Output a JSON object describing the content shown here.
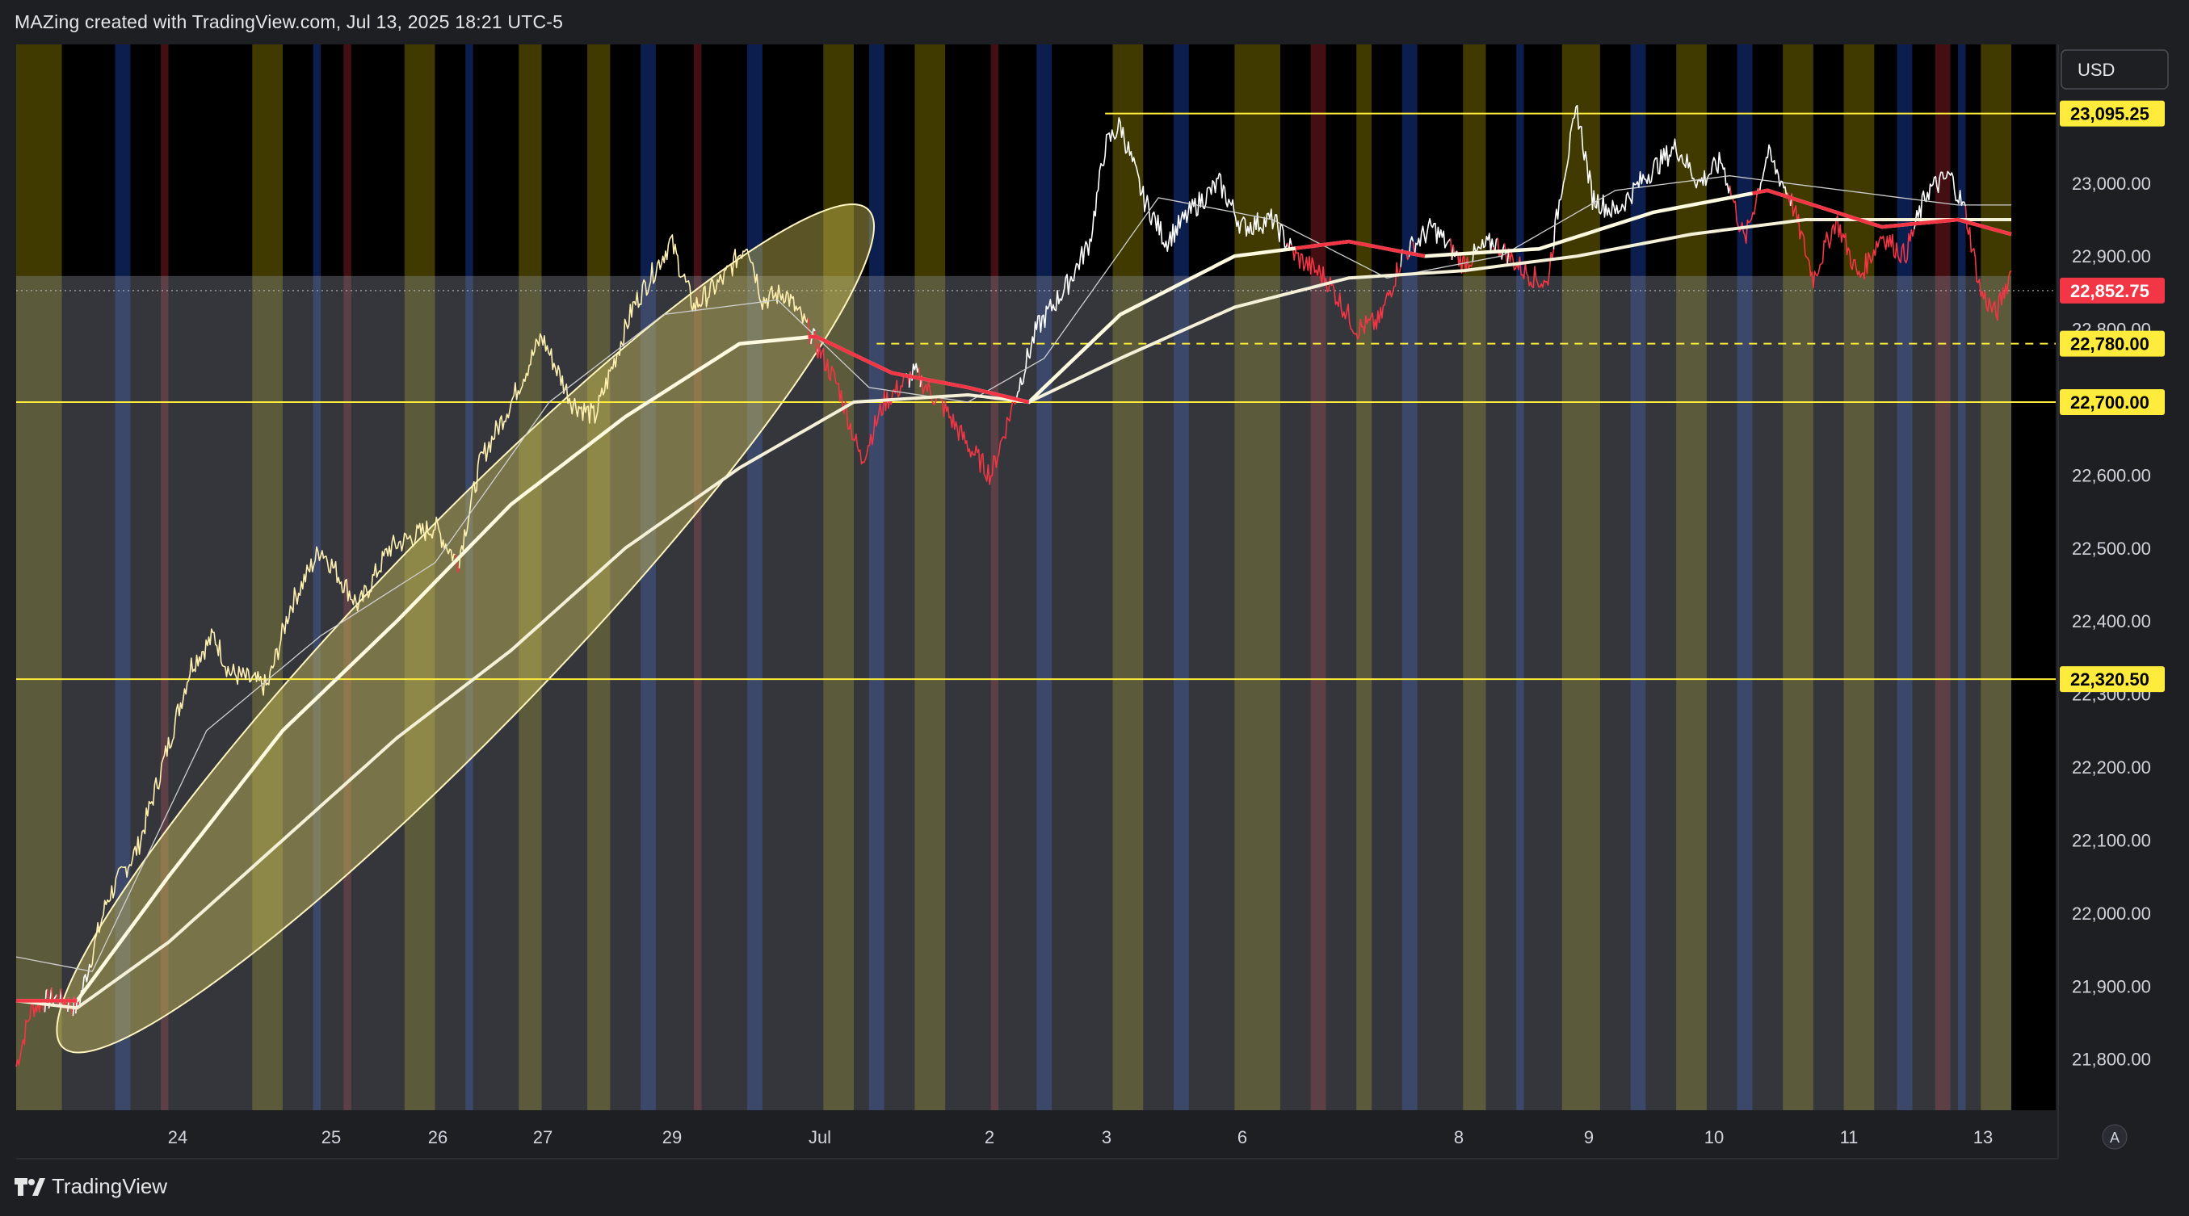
{
  "header": {
    "title": "MAZing created with TradingView.com, Jul 13, 2025 18:21 UTC-5"
  },
  "footer": {
    "brand": "TradingView",
    "brand_icon": "tradingview-logo-icon"
  },
  "currency_button": {
    "label": "USD"
  },
  "auto_scale_button": {
    "label": "A"
  },
  "colors": {
    "background": "#1e1f23",
    "bullish_price": "#ffffff",
    "bearish_price": "#f23645",
    "ellipse_price": "#fff0b0",
    "level_line": "#ffeb3b",
    "band_yellow": "#c8b400",
    "band_blue": "#2962ff",
    "band_red": "#f23645",
    "current_price_badge": "#f23645"
  },
  "chart_data": {
    "type": "line",
    "symbol_context": "price chart with moving averages and horizontal levels",
    "x_ticks": [
      "24",
      "25",
      "26",
      "27",
      "29",
      "Jul",
      "2",
      "3",
      "6",
      "8",
      "9",
      "10",
      "11",
      "13"
    ],
    "y_ticks": [
      "21,800.00",
      "21,900.00",
      "22,000.00",
      "22,100.00",
      "22,200.00",
      "22,300.00",
      "22,400.00",
      "22,500.00",
      "22,600.00",
      "22,700.00",
      "22,800.00",
      "22,900.00",
      "23,000.00"
    ],
    "ylim": [
      21730,
      23190
    ],
    "price_series": [
      {
        "t": 0,
        "v": 21790
      },
      {
        "t": 2,
        "v": 21870
      },
      {
        "t": 5,
        "v": 21885
      },
      {
        "t": 8,
        "v": 21870
      },
      {
        "t": 12,
        "v": 22020
      },
      {
        "t": 16,
        "v": 22090
      },
      {
        "t": 20,
        "v": 22230
      },
      {
        "t": 23,
        "v": 22340
      },
      {
        "t": 26,
        "v": 22380
      },
      {
        "t": 28,
        "v": 22330
      },
      {
        "t": 33,
        "v": 22310
      },
      {
        "t": 36,
        "v": 22420
      },
      {
        "t": 40,
        "v": 22500
      },
      {
        "t": 45,
        "v": 22420
      },
      {
        "t": 49,
        "v": 22500
      },
      {
        "t": 55,
        "v": 22530
      },
      {
        "t": 58,
        "v": 22480
      },
      {
        "t": 61,
        "v": 22620
      },
      {
        "t": 65,
        "v": 22700
      },
      {
        "t": 69,
        "v": 22790
      },
      {
        "t": 73,
        "v": 22700
      },
      {
        "t": 76,
        "v": 22680
      },
      {
        "t": 78,
        "v": 22740
      },
      {
        "t": 81,
        "v": 22830
      },
      {
        "t": 86,
        "v": 22920
      },
      {
        "t": 89,
        "v": 22830
      },
      {
        "t": 93,
        "v": 22870
      },
      {
        "t": 96,
        "v": 22920
      },
      {
        "t": 98,
        "v": 22840
      },
      {
        "t": 101,
        "v": 22850
      },
      {
        "t": 104,
        "v": 22800
      },
      {
        "t": 108,
        "v": 22720
      },
      {
        "t": 111,
        "v": 22620
      },
      {
        "t": 114,
        "v": 22700
      },
      {
        "t": 118,
        "v": 22740
      },
      {
        "t": 122,
        "v": 22690
      },
      {
        "t": 125,
        "v": 22640
      },
      {
        "t": 128,
        "v": 22600
      },
      {
        "t": 131,
        "v": 22700
      },
      {
        "t": 134,
        "v": 22800
      },
      {
        "t": 138,
        "v": 22860
      },
      {
        "t": 141,
        "v": 22920
      },
      {
        "t": 143,
        "v": 23050
      },
      {
        "t": 145,
        "v": 23080
      },
      {
        "t": 148,
        "v": 22980
      },
      {
        "t": 151,
        "v": 22920
      },
      {
        "t": 155,
        "v": 22970
      },
      {
        "t": 158,
        "v": 23000
      },
      {
        "t": 161,
        "v": 22940
      },
      {
        "t": 165,
        "v": 22950
      },
      {
        "t": 168,
        "v": 22900
      },
      {
        "t": 172,
        "v": 22870
      },
      {
        "t": 176,
        "v": 22800
      },
      {
        "t": 179,
        "v": 22810
      },
      {
        "t": 182,
        "v": 22900
      },
      {
        "t": 186,
        "v": 22940
      },
      {
        "t": 190,
        "v": 22890
      },
      {
        "t": 194,
        "v": 22920
      },
      {
        "t": 198,
        "v": 22880
      },
      {
        "t": 201,
        "v": 22860
      },
      {
        "t": 203,
        "v": 23000
      },
      {
        "t": 205,
        "v": 23100
      },
      {
        "t": 207,
        "v": 22980
      },
      {
        "t": 210,
        "v": 22960
      },
      {
        "t": 214,
        "v": 23010
      },
      {
        "t": 218,
        "v": 23050
      },
      {
        "t": 221,
        "v": 23000
      },
      {
        "t": 224,
        "v": 23030
      },
      {
        "t": 227,
        "v": 22920
      },
      {
        "t": 230,
        "v": 23040
      },
      {
        "t": 233,
        "v": 22980
      },
      {
        "t": 236,
        "v": 22870
      },
      {
        "t": 239,
        "v": 22950
      },
      {
        "t": 242,
        "v": 22870
      },
      {
        "t": 245,
        "v": 22930
      },
      {
        "t": 248,
        "v": 22900
      },
      {
        "t": 251,
        "v": 22990
      },
      {
        "t": 254,
        "v": 23010
      },
      {
        "t": 256,
        "v": 22960
      },
      {
        "t": 258,
        "v": 22850
      },
      {
        "t": 260,
        "v": 22820
      },
      {
        "t": 262,
        "v": 22880
      }
    ],
    "ma_fast": [
      {
        "t": 0,
        "v": 21880
      },
      {
        "t": 8,
        "v": 21880
      },
      {
        "t": 20,
        "v": 22050
      },
      {
        "t": 35,
        "v": 22250
      },
      {
        "t": 50,
        "v": 22400
      },
      {
        "t": 65,
        "v": 22560
      },
      {
        "t": 80,
        "v": 22680
      },
      {
        "t": 95,
        "v": 22780
      },
      {
        "t": 105,
        "v": 22790
      },
      {
        "t": 115,
        "v": 22740
      },
      {
        "t": 125,
        "v": 22720
      },
      {
        "t": 133,
        "v": 22700
      },
      {
        "t": 145,
        "v": 22820
      },
      {
        "t": 160,
        "v": 22900
      },
      {
        "t": 175,
        "v": 22920
      },
      {
        "t": 185,
        "v": 22900
      },
      {
        "t": 200,
        "v": 22910
      },
      {
        "t": 215,
        "v": 22960
      },
      {
        "t": 230,
        "v": 22990
      },
      {
        "t": 245,
        "v": 22940
      },
      {
        "t": 255,
        "v": 22950
      },
      {
        "t": 262,
        "v": 22930
      }
    ],
    "ma_slow": [
      {
        "t": 0,
        "v": 21880
      },
      {
        "t": 8,
        "v": 21870
      },
      {
        "t": 20,
        "v": 21960
      },
      {
        "t": 35,
        "v": 22100
      },
      {
        "t": 50,
        "v": 22240
      },
      {
        "t": 65,
        "v": 22360
      },
      {
        "t": 80,
        "v": 22500
      },
      {
        "t": 95,
        "v": 22610
      },
      {
        "t": 110,
        "v": 22700
      },
      {
        "t": 125,
        "v": 22710
      },
      {
        "t": 133,
        "v": 22700
      },
      {
        "t": 145,
        "v": 22760
      },
      {
        "t": 160,
        "v": 22830
      },
      {
        "t": 175,
        "v": 22870
      },
      {
        "t": 190,
        "v": 22880
      },
      {
        "t": 205,
        "v": 22900
      },
      {
        "t": 220,
        "v": 22930
      },
      {
        "t": 235,
        "v": 22950
      },
      {
        "t": 250,
        "v": 22950
      },
      {
        "t": 262,
        "v": 22950
      }
    ],
    "ma_thin": [
      {
        "t": 0,
        "v": 21940
      },
      {
        "t": 10,
        "v": 21920
      },
      {
        "t": 25,
        "v": 22250
      },
      {
        "t": 40,
        "v": 22380
      },
      {
        "t": 55,
        "v": 22480
      },
      {
        "t": 70,
        "v": 22700
      },
      {
        "t": 85,
        "v": 22820
      },
      {
        "t": 100,
        "v": 22840
      },
      {
        "t": 112,
        "v": 22720
      },
      {
        "t": 125,
        "v": 22700
      },
      {
        "t": 135,
        "v": 22760
      },
      {
        "t": 150,
        "v": 22980
      },
      {
        "t": 165,
        "v": 22950
      },
      {
        "t": 180,
        "v": 22870
      },
      {
        "t": 195,
        "v": 22900
      },
      {
        "t": 210,
        "v": 22990
      },
      {
        "t": 225,
        "v": 23010
      },
      {
        "t": 240,
        "v": 22990
      },
      {
        "t": 255,
        "v": 22970
      },
      {
        "t": 262,
        "v": 22970
      }
    ],
    "horizontal_levels": [
      {
        "value": 23095.25,
        "label": "23,095.25",
        "style": "solid"
      },
      {
        "value": 22780.0,
        "label": "22,780.00",
        "style": "dashed"
      },
      {
        "value": 22700.0,
        "label": "22,700.00",
        "style": "solid"
      },
      {
        "value": 22320.5,
        "label": "22,320.50",
        "style": "solid"
      }
    ],
    "current_price": {
      "value": 22852.75,
      "label": "22,852.75"
    },
    "background_bands": [
      {
        "t0": 0,
        "t1": 6,
        "c": "yellow"
      },
      {
        "t0": 13,
        "t1": 15,
        "c": "blue"
      },
      {
        "t0": 19,
        "t1": 20,
        "c": "red"
      },
      {
        "t0": 31,
        "t1": 35,
        "c": "yellow"
      },
      {
        "t0": 39,
        "t1": 40,
        "c": "blue"
      },
      {
        "t0": 43,
        "t1": 44,
        "c": "red"
      },
      {
        "t0": 51,
        "t1": 55,
        "c": "yellow"
      },
      {
        "t0": 59,
        "t1": 60,
        "c": "blue"
      },
      {
        "t0": 66,
        "t1": 69,
        "c": "yellow"
      },
      {
        "t0": 75,
        "t1": 78,
        "c": "yellow"
      },
      {
        "t0": 82,
        "t1": 84,
        "c": "blue"
      },
      {
        "t0": 89,
        "t1": 90,
        "c": "red"
      },
      {
        "t0": 96,
        "t1": 98,
        "c": "blue"
      },
      {
        "t0": 106,
        "t1": 110,
        "c": "yellow"
      },
      {
        "t0": 112,
        "t1": 114,
        "c": "blue"
      },
      {
        "t0": 118,
        "t1": 122,
        "c": "yellow"
      },
      {
        "t0": 128,
        "t1": 129,
        "c": "red"
      },
      {
        "t0": 134,
        "t1": 136,
        "c": "blue"
      },
      {
        "t0": 144,
        "t1": 148,
        "c": "yellow"
      },
      {
        "t0": 152,
        "t1": 154,
        "c": "blue"
      },
      {
        "t0": 160,
        "t1": 166,
        "c": "yellow"
      },
      {
        "t0": 170,
        "t1": 172,
        "c": "red"
      },
      {
        "t0": 176,
        "t1": 178,
        "c": "yellow"
      },
      {
        "t0": 182,
        "t1": 184,
        "c": "blue"
      },
      {
        "t0": 190,
        "t1": 193,
        "c": "yellow"
      },
      {
        "t0": 197,
        "t1": 198,
        "c": "blue"
      },
      {
        "t0": 203,
        "t1": 208,
        "c": "yellow"
      },
      {
        "t0": 212,
        "t1": 214,
        "c": "blue"
      },
      {
        "t0": 218,
        "t1": 222,
        "c": "yellow"
      },
      {
        "t0": 226,
        "t1": 228,
        "c": "blue"
      },
      {
        "t0": 232,
        "t1": 236,
        "c": "yellow"
      },
      {
        "t0": 240,
        "t1": 244,
        "c": "yellow"
      },
      {
        "t0": 247,
        "t1": 249,
        "c": "blue"
      },
      {
        "t0": 252,
        "t1": 254,
        "c": "red"
      },
      {
        "t0": 255,
        "t1": 256,
        "c": "blue"
      },
      {
        "t0": 258,
        "t1": 262,
        "c": "yellow"
      }
    ]
  }
}
